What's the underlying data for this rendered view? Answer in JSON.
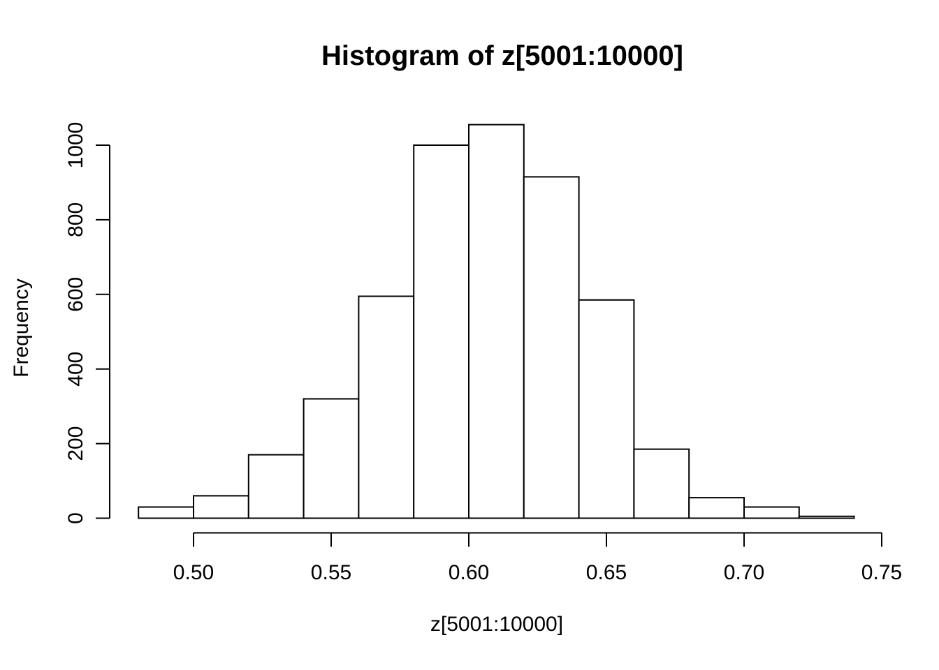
{
  "chart_data": {
    "type": "bar",
    "subtype": "histogram",
    "title": "Histogram of z[5001:10000]",
    "xlabel": "z[5001:10000]",
    "ylabel": "Frequency",
    "bin_start": 0.48,
    "bin_width": 0.02,
    "bin_edges": [
      0.48,
      0.5,
      0.52,
      0.54,
      0.56,
      0.58,
      0.6,
      0.62,
      0.64,
      0.66,
      0.68,
      0.7,
      0.72,
      0.74
    ],
    "counts": [
      30,
      60,
      170,
      320,
      595,
      1000,
      1055,
      915,
      585,
      185,
      55,
      30,
      5
    ],
    "x_ticks": [
      0.5,
      0.55,
      0.6,
      0.65,
      0.7,
      0.75
    ],
    "y_ticks": [
      0,
      200,
      400,
      600,
      800,
      1000
    ],
    "xlim": [
      0.48,
      0.75
    ],
    "ylim": [
      0,
      1055
    ],
    "grid": "off",
    "legend": "none",
    "bar_fill": "#ffffff",
    "bar_stroke": "#000000",
    "axis_color": "#000000",
    "background": "#ffffff"
  }
}
